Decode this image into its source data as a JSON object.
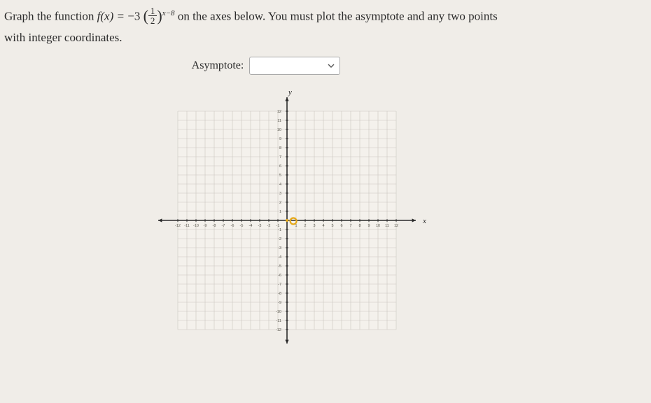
{
  "question": {
    "prefix": "Graph the function ",
    "fx": "f(x)",
    "equals": " = ",
    "coef": "−3",
    "frac_num": "1",
    "frac_den": "2",
    "exp_var": "x",
    "exp_rest": "−8",
    "suffix1": " on the axes below. You must plot the asymptote and any two points",
    "line2": "with integer coordinates."
  },
  "asymptote": {
    "label": "Asymptote:"
  },
  "chart": {
    "type": "coordinate-grid",
    "xlim": [
      -12,
      12
    ],
    "ylim": [
      -12,
      12
    ],
    "tick_step": 1,
    "x_label": "x",
    "y_label": "y",
    "y_tick_labels": [
      12,
      11,
      10,
      9,
      8,
      7,
      6,
      5,
      4,
      3,
      2,
      1,
      -1,
      -2,
      -3,
      -4,
      -5,
      -6,
      -7,
      -8,
      -9,
      -10,
      -11,
      -12
    ],
    "x_tick_labels_left": [
      -12,
      -11,
      -10,
      -9,
      -8,
      -7,
      -6,
      -5,
      -4,
      -3,
      -2,
      -1
    ],
    "x_tick_labels_right": [
      1,
      2,
      3,
      4,
      5,
      6,
      7,
      8,
      9,
      10,
      11,
      12
    ],
    "grid_color": "#c9c6c0",
    "axis_color": "#2a2a2a",
    "background_color": "#f4f1ec",
    "origin_marker_color": "#e6a817",
    "svg_size": 380
  }
}
